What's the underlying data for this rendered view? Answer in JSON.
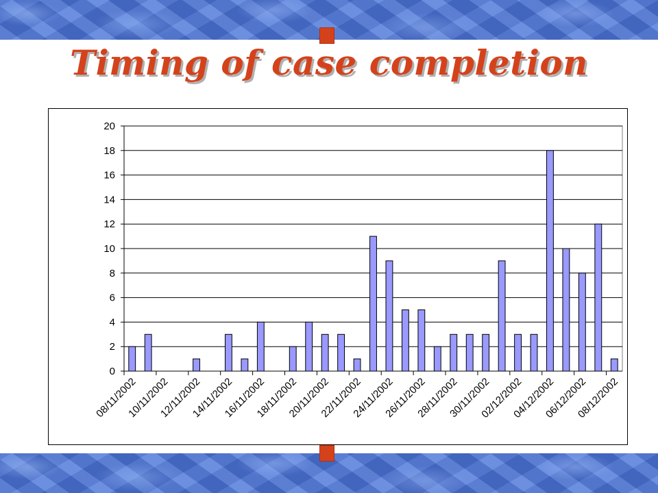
{
  "title": "Timing of case completion",
  "colors": {
    "title": "#d4421c",
    "bar_fill": "#9999ff",
    "band": "#4f79d9",
    "marker": "#d4421c"
  },
  "chart_data": {
    "type": "bar",
    "title": "",
    "xlabel": "",
    "ylabel": "",
    "ylim": [
      0,
      20
    ],
    "yticks": [
      0,
      2,
      4,
      6,
      8,
      10,
      12,
      14,
      16,
      18,
      20
    ],
    "grid": true,
    "legend": "none",
    "categories": [
      "08/11/2002",
      "09/11/2002",
      "10/11/2002",
      "11/11/2002",
      "12/11/2002",
      "13/11/2002",
      "14/11/2002",
      "15/11/2002",
      "16/11/2002",
      "17/11/2002",
      "18/11/2002",
      "19/11/2002",
      "20/11/2002",
      "21/11/2002",
      "22/11/2002",
      "23/11/2002",
      "24/11/2002",
      "25/11/2002",
      "26/11/2002",
      "27/11/2002",
      "28/11/2002",
      "29/11/2002",
      "30/11/2002",
      "01/12/2002",
      "02/12/2002",
      "03/12/2002",
      "04/12/2002",
      "05/12/2002",
      "06/12/2002",
      "07/12/2002",
      "08/12/2002"
    ],
    "values": [
      2,
      3,
      0,
      0,
      1,
      0,
      3,
      1,
      4,
      0,
      2,
      4,
      3,
      3,
      1,
      11,
      9,
      5,
      5,
      2,
      3,
      3,
      3,
      9,
      3,
      3,
      18,
      10,
      8,
      12,
      1
    ],
    "tick_labels": [
      "08/11/2002",
      "10/11/2002",
      "12/11/2002",
      "14/11/2002",
      "16/11/2002",
      "18/11/2002",
      "20/11/2002",
      "22/11/2002",
      "24/11/2002",
      "26/11/2002",
      "28/11/2002",
      "30/11/2002",
      "02/12/2002",
      "04/12/2002",
      "06/12/2002",
      "08/12/2002"
    ]
  }
}
